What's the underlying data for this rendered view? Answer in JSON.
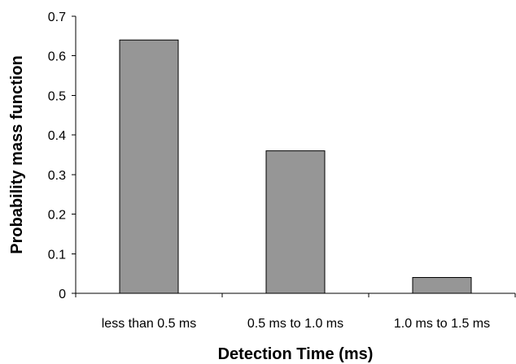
{
  "chart_data": {
    "type": "bar",
    "title": "",
    "xlabel": "Detection Time (ms)",
    "ylabel": "Probability mass function",
    "categories": [
      "less than 0.5 ms",
      "0.5 ms to 1.0 ms",
      "1.0 ms to 1.5 ms"
    ],
    "values": [
      0.64,
      0.36,
      0.04
    ],
    "ylim": [
      0,
      0.7
    ],
    "yticks": [
      "0",
      "0.1",
      "0.2",
      "0.3",
      "0.4",
      "0.5",
      "0.6",
      "0.7"
    ],
    "grid": false,
    "legend": "none",
    "bar_color": "#969696"
  }
}
